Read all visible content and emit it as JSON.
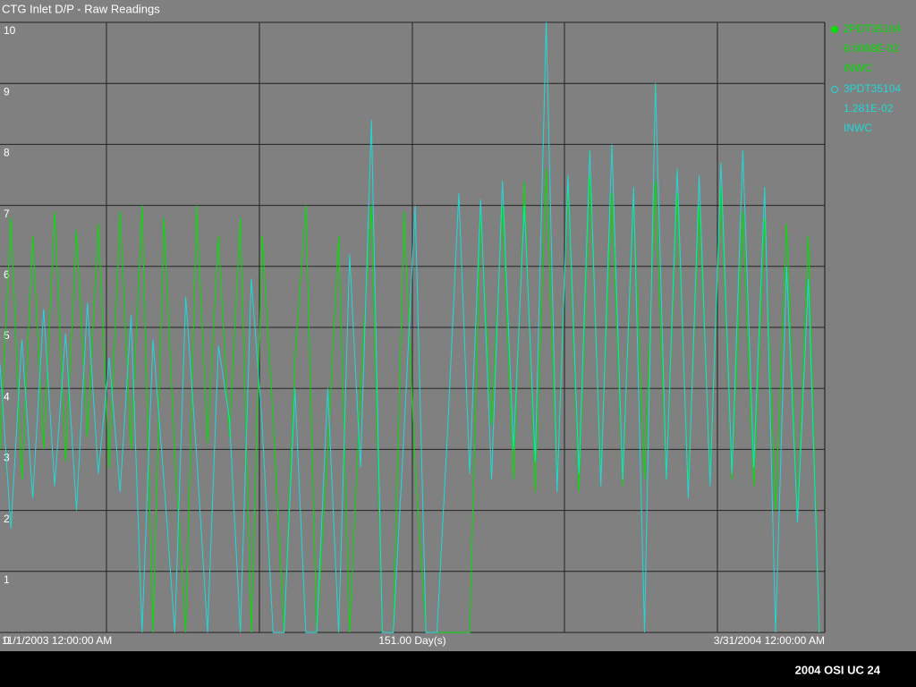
{
  "chart_data": {
    "type": "line",
    "title": "CTG Inlet D/P - Raw  Readings",
    "x_start_label": "11/1/2003 12:00:00 AM",
    "x_span_label": "151.00 Day(s)",
    "x_end_label": "3/31/2004 12:00:00 AM",
    "xlim": [
      0,
      151
    ],
    "ylim": [
      0,
      10
    ],
    "yticks": [
      0,
      1,
      2,
      3,
      4,
      5,
      6,
      7,
      8,
      9,
      10
    ],
    "grid": true,
    "x": [
      0,
      2,
      4,
      6,
      8,
      10,
      12,
      14,
      16,
      18,
      20,
      22,
      24,
      26,
      28,
      30,
      32,
      34,
      36,
      38,
      40,
      42,
      44,
      46,
      48,
      50,
      52,
      54,
      56,
      58,
      60,
      62,
      64,
      66,
      68,
      70,
      72,
      74,
      76,
      78,
      80,
      82,
      84,
      86,
      88,
      90,
      92,
      94,
      96,
      98,
      100,
      102,
      104,
      106,
      108,
      110,
      112,
      114,
      116,
      118,
      120,
      122,
      124,
      126,
      128,
      130,
      132,
      134,
      136,
      138,
      140,
      142,
      144,
      146,
      148,
      150
    ],
    "series": [
      {
        "name": "2PDT35104",
        "value_text": "8.0068E-02",
        "unit": "INWC",
        "color": "#00e000",
        "values": [
          3,
          6.8,
          2.5,
          6.5,
          3,
          6.9,
          2.8,
          6.6,
          3.2,
          6.7,
          2.7,
          6.9,
          3,
          7,
          0,
          6.8,
          2.9,
          0,
          7,
          3.1,
          6.5,
          3.2,
          6.8,
          0,
          6.5,
          3.5,
          0,
          4.5,
          7,
          0,
          3,
          6.5,
          0,
          4,
          7,
          0,
          0,
          6.9,
          2.7,
          0,
          0,
          0,
          0,
          0,
          6.9,
          3.4,
          7,
          2.5,
          7.4,
          2.3,
          7.6,
          2.4,
          7.3,
          2.3,
          7.5,
          2.6,
          7.2,
          2.4,
          7.1,
          2.5,
          7.4,
          2.5,
          7.2,
          2.4,
          7.0,
          2.6,
          7.3,
          2.5,
          6.9,
          2.4,
          6.8,
          2.0,
          6.7,
          1.9,
          6.5,
          0
        ]
      },
      {
        "name": "3PDT35104",
        "value_text": "1.281E-02",
        "unit": "INWC",
        "color": "#20d8d8",
        "values": [
          4.4,
          1.7,
          4.8,
          2.2,
          5.3,
          2.4,
          4.9,
          2.0,
          5.4,
          2.6,
          4.5,
          2.3,
          5.2,
          0,
          4.8,
          2.5,
          0,
          5.5,
          2.9,
          0,
          4.7,
          3.5,
          0,
          5.8,
          3.4,
          0,
          0,
          4.0,
          0,
          0,
          4.0,
          0,
          6.2,
          2.7,
          8.4,
          0,
          0,
          3.3,
          7.0,
          0,
          0,
          3.4,
          7.2,
          2.6,
          7.1,
          2.5,
          7.4,
          3.0,
          7.0,
          2.8,
          10,
          2.3,
          7.5,
          2.6,
          7.9,
          2.4,
          8.0,
          2.5,
          7.3,
          0,
          9.0,
          2.5,
          7.6,
          2.2,
          7.5,
          2.4,
          7.7,
          2.6,
          7.9,
          2.7,
          7.3,
          0,
          6.0,
          1.8,
          5.8,
          0
        ]
      }
    ],
    "footer": "2004 OSI UC  24"
  }
}
